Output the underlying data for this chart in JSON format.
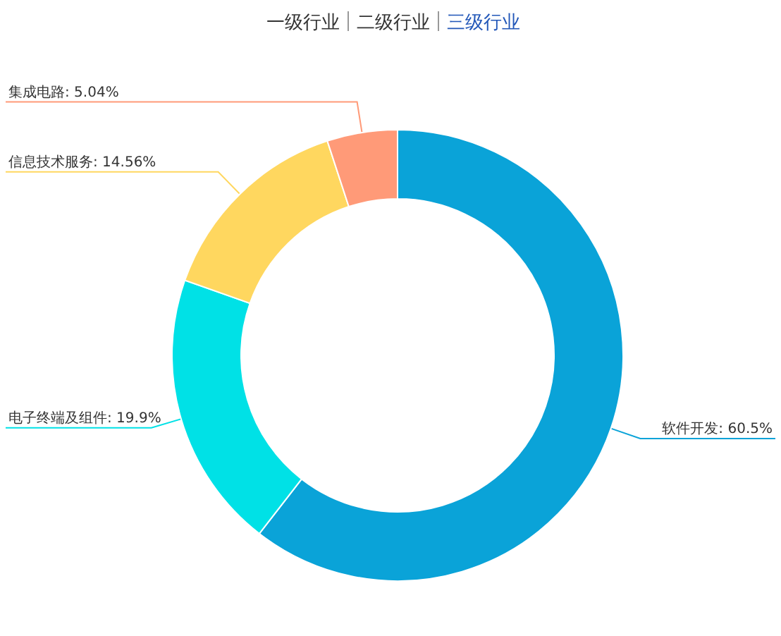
{
  "chart_data": {
    "type": "donut",
    "annotations": [
      "一级行业",
      "二级行业",
      "三级行业"
    ],
    "categories": [
      "软件开发",
      "电子终端及组件",
      "信息技术服务",
      "集成电路"
    ],
    "values": [
      60.5,
      19.9,
      14.56,
      5.04
    ],
    "value_labels": [
      ": 60.5%",
      ": 19.9%",
      ": 14.56%",
      ": 5.04%"
    ],
    "colors": [
      "#0aa3d8",
      "#00e1e6",
      "#ffd75f",
      "#ff9a78"
    ]
  }
}
